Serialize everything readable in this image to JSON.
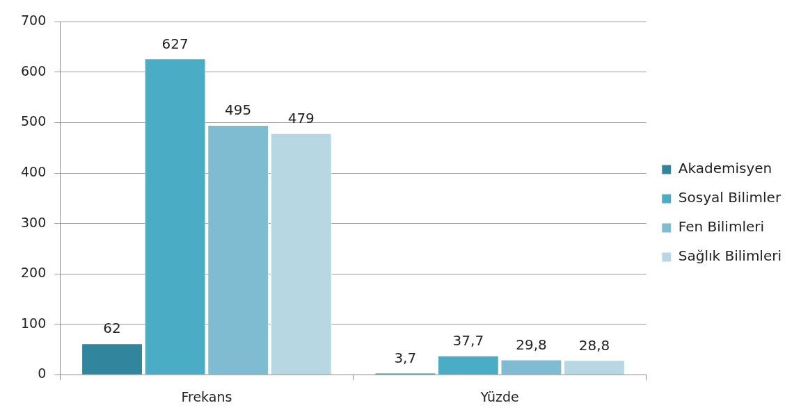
{
  "chart_data": {
    "type": "bar",
    "categories": [
      "Frekans",
      "Yüzde"
    ],
    "series": [
      {
        "name": "Akademisyen",
        "color": "#31859c",
        "values": [
          62,
          3.7
        ],
        "value_labels": [
          "62",
          "3,7"
        ]
      },
      {
        "name": "Sosyal Bilimler",
        "color": "#4bacc6",
        "values": [
          627,
          37.7
        ],
        "value_labels": [
          "627",
          "37,7"
        ]
      },
      {
        "name": "Fen Bilimleri",
        "color": "#7fbcd2",
        "values": [
          495,
          29.8
        ],
        "value_labels": [
          "495",
          "29,8"
        ]
      },
      {
        "name": "Sağlık Bilimleri",
        "color": "#b7d7e3",
        "values": [
          479,
          28.8
        ],
        "value_labels": [
          "479",
          "28,8"
        ]
      }
    ],
    "ylim": [
      0,
      700
    ],
    "yticks": [
      0,
      100,
      200,
      300,
      400,
      500,
      600,
      700
    ],
    "grid": "y",
    "legend": "right"
  }
}
